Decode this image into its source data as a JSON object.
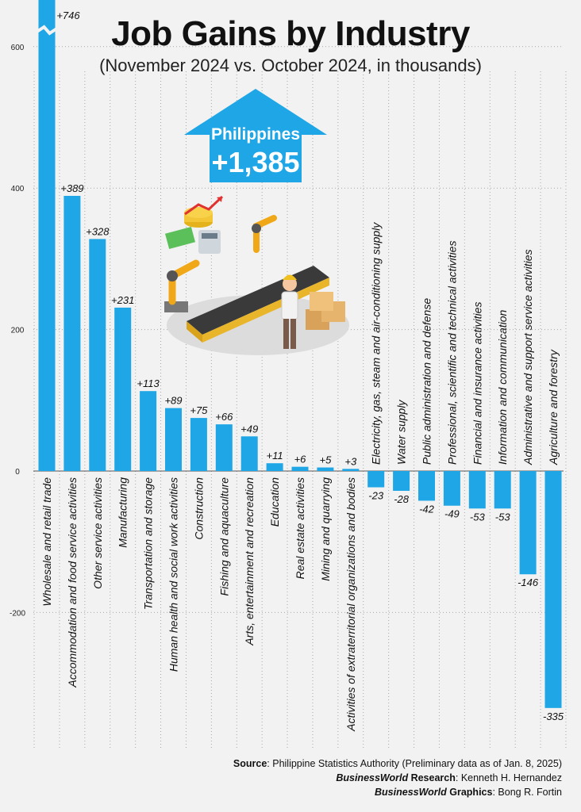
{
  "title": "Job Gains by Industry",
  "subtitle": "(November 2024 vs. October 2024, in thousands)",
  "callout": {
    "label": "Philippines",
    "value": "+1,385"
  },
  "colors": {
    "bar": "#1ea6e6",
    "background": "#f2f2f2",
    "text": "#111111",
    "grid": "#999999"
  },
  "footer": {
    "source_label": "Source",
    "source_text": ": Philippine Statistics Authority (Preliminary data as of Jan. 8, 2025)",
    "research_brand": "BusinessWorld",
    "research_label": " Research",
    "research_text": ": Kenneth H. Hernandez",
    "graphics_brand": "BusinessWorld",
    "graphics_label": " Graphics",
    "graphics_text": ": Bong R. Fortin"
  },
  "chart_data": {
    "type": "bar",
    "title": "Job Gains by Industry",
    "subtitle": "(November 2024 vs. October 2024, in thousands)",
    "ylim": [
      -390,
      660
    ],
    "yticks": [
      -200,
      0,
      200,
      400,
      600
    ],
    "grid": true,
    "axis_break_on_first_bar": true,
    "categories": [
      "Wholesale and retail trade",
      "Accommodation and food service activities",
      "Other service activities",
      "Manufacturing",
      "Transportation and storage",
      "Human health and social work activities",
      "Construction",
      "Fishing and aquaculture",
      "Arts, entertainment and recreation",
      "Education",
      "Real estate activities",
      "Mining and quarrying",
      "Activities of extraterritorial organizations and bodies",
      "Electricity, gas, steam and air-conditioning supply",
      "Water supply",
      "Public administration and defense",
      "Professional, scientific and technical activities",
      "Financial and insurance activities",
      "Information and communication",
      "Administrative and support service activities",
      "Agriculture and forestry"
    ],
    "values": [
      746,
      389,
      328,
      231,
      113,
      89,
      75,
      66,
      49,
      11,
      6,
      5,
      3,
      -23,
      -28,
      -42,
      -49,
      -53,
      -53,
      -146,
      -335
    ],
    "value_labels": [
      "+746",
      "+389",
      "+328",
      "+231",
      "+113",
      "+89",
      "+75",
      "+66",
      "+49",
      "+11",
      "+6",
      "+5",
      "+3",
      "-23",
      "-28",
      "-42",
      "-49",
      "-53",
      "-53",
      "-146",
      "-335"
    ]
  }
}
